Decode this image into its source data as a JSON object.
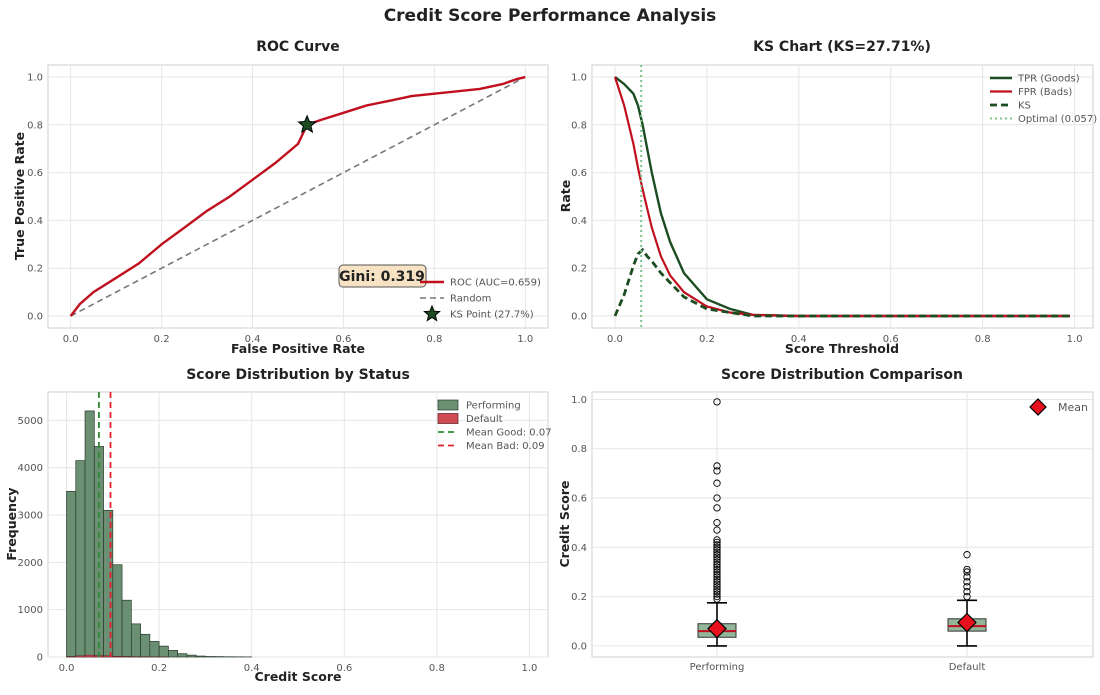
{
  "suptitle": "Credit Score Performance Analysis",
  "colors": {
    "red": "#c0101f",
    "green": "#1b4d21",
    "good_fill": "#6b8f72",
    "bad_fill": "#d14b55",
    "diag": "#777777",
    "optimal": "#7cc48b",
    "gini_box": "#f7e3c4",
    "box_fill": "#93b59a"
  },
  "chart_data": [
    {
      "type": "line",
      "title": "ROC Curve",
      "xlabel": "False Positive Rate",
      "ylabel": "True Positive Rate",
      "xlim": [
        0,
        1
      ],
      "ylim": [
        0,
        1
      ],
      "xticks": [
        "0.0",
        "0.2",
        "0.4",
        "0.6",
        "0.8",
        "1.0"
      ],
      "yticks": [
        "0.0",
        "0.2",
        "0.4",
        "0.6",
        "0.8",
        "1.0"
      ],
      "series": [
        {
          "name": "ROC (AUC=0.659)",
          "x": [
            0,
            0.02,
            0.05,
            0.1,
            0.15,
            0.2,
            0.25,
            0.3,
            0.35,
            0.4,
            0.45,
            0.5,
            0.52,
            0.55,
            0.6,
            0.65,
            0.7,
            0.75,
            0.8,
            0.85,
            0.9,
            0.95,
            0.98,
            1.0
          ],
          "y": [
            0,
            0.05,
            0.1,
            0.16,
            0.22,
            0.3,
            0.37,
            0.44,
            0.5,
            0.57,
            0.64,
            0.72,
            0.8,
            0.82,
            0.85,
            0.88,
            0.9,
            0.92,
            0.93,
            0.94,
            0.95,
            0.97,
            0.99,
            1.0
          ]
        },
        {
          "name": "Random",
          "x": [
            0,
            1
          ],
          "y": [
            0,
            1
          ]
        }
      ],
      "ks_point": {
        "name": "KS Point (27.7%)",
        "x": 0.52,
        "y": 0.8
      },
      "annotation": "Gini: 0.319",
      "legend": [
        "ROC (AUC=0.659)",
        "Random",
        "KS Point (27.7%)"
      ]
    },
    {
      "type": "line",
      "title": "KS Chart (KS=27.71%)",
      "xlabel": "Score Threshold",
      "ylabel": "Rate",
      "xlim": [
        0,
        1
      ],
      "ylim": [
        0,
        1
      ],
      "xticks": [
        "0.0",
        "0.2",
        "0.4",
        "0.6",
        "0.8",
        "1.0"
      ],
      "yticks": [
        "0.0",
        "0.2",
        "0.4",
        "0.6",
        "0.8",
        "1.0"
      ],
      "x": [
        0,
        0.02,
        0.04,
        0.05,
        0.06,
        0.07,
        0.08,
        0.1,
        0.12,
        0.15,
        0.2,
        0.25,
        0.3,
        0.4,
        0.6,
        0.8,
        0.99
      ],
      "series": [
        {
          "name": "TPR (Goods)",
          "values": [
            1.0,
            0.97,
            0.93,
            0.88,
            0.8,
            0.7,
            0.6,
            0.43,
            0.31,
            0.18,
            0.07,
            0.03,
            0.005,
            0,
            0,
            0,
            0
          ]
        },
        {
          "name": "FPR (Bads)",
          "values": [
            1.0,
            0.88,
            0.72,
            0.62,
            0.53,
            0.45,
            0.37,
            0.25,
            0.17,
            0.1,
            0.04,
            0.015,
            0.005,
            0,
            0,
            0,
            0
          ]
        },
        {
          "name": "KS",
          "values": [
            0.0,
            0.09,
            0.21,
            0.26,
            0.277,
            0.25,
            0.23,
            0.18,
            0.14,
            0.08,
            0.03,
            0.015,
            0,
            0,
            0,
            0,
            0
          ]
        }
      ],
      "optimal": {
        "name": "Optimal (0.057)",
        "x": 0.057
      },
      "legend": [
        "TPR (Goods)",
        "FPR (Bads)",
        "KS",
        "Optimal (0.057)"
      ]
    },
    {
      "type": "bar",
      "title": "Score Distribution by Status",
      "xlabel": "Credit Score",
      "ylabel": "Frequency",
      "xlim": [
        -0.02,
        1.0
      ],
      "ylim": [
        0,
        5600
      ],
      "xticks": [
        "0.0",
        "0.2",
        "0.4",
        "0.6",
        "0.8",
        "1.0"
      ],
      "yticks": [
        "0",
        "1000",
        "2000",
        "3000",
        "4000",
        "5000"
      ],
      "bin_width": 0.02,
      "bin_starts": [
        0.0,
        0.02,
        0.04,
        0.06,
        0.08,
        0.1,
        0.12,
        0.14,
        0.16,
        0.18,
        0.2,
        0.22,
        0.24,
        0.26,
        0.28,
        0.3,
        0.32,
        0.34,
        0.36,
        0.38
      ],
      "series": [
        {
          "name": "Performing",
          "values": [
            3500,
            4150,
            5200,
            4450,
            3100,
            1950,
            1200,
            700,
            480,
            330,
            230,
            140,
            70,
            40,
            20,
            10,
            8,
            5,
            4,
            2
          ]
        },
        {
          "name": "Default",
          "values": [
            10,
            25,
            40,
            30,
            25,
            15,
            10,
            6,
            4,
            2,
            1,
            0,
            0,
            0,
            0,
            0,
            0,
            0,
            0,
            0
          ]
        }
      ],
      "mean_lines": [
        {
          "name": "Mean Good: 0.07",
          "x": 0.07
        },
        {
          "name": "Mean Bad: 0.09",
          "x": 0.095
        }
      ],
      "legend": [
        "Performing",
        "Default",
        "Mean Good: 0.07",
        "Mean Bad: 0.09"
      ]
    },
    {
      "type": "box",
      "title": "Score Distribution Comparison",
      "ylabel": "Credit Score",
      "ylim": [
        -0.04,
        1.02
      ],
      "yticks": [
        "0.0",
        "0.2",
        "0.4",
        "0.6",
        "0.8",
        "1.0"
      ],
      "categories": [
        "Performing",
        "Default"
      ],
      "boxes": [
        {
          "name": "Performing",
          "q1": 0.035,
          "median": 0.06,
          "q3": 0.09,
          "whislo": 0.0,
          "whishi": 0.175,
          "mean": 0.07,
          "fliers": [
            0.19,
            0.2,
            0.21,
            0.22,
            0.23,
            0.24,
            0.25,
            0.26,
            0.27,
            0.28,
            0.29,
            0.3,
            0.31,
            0.32,
            0.33,
            0.34,
            0.35,
            0.36,
            0.37,
            0.38,
            0.39,
            0.4,
            0.41,
            0.42,
            0.43,
            0.47,
            0.5,
            0.56,
            0.6,
            0.66,
            0.71,
            0.73,
            0.99
          ]
        },
        {
          "name": "Default",
          "q1": 0.06,
          "median": 0.08,
          "q3": 0.11,
          "whislo": 0.0,
          "whishi": 0.185,
          "mean": 0.095,
          "fliers": [
            0.2,
            0.22,
            0.24,
            0.26,
            0.28,
            0.3,
            0.31,
            0.37
          ]
        }
      ],
      "legend": [
        "Mean"
      ]
    }
  ]
}
